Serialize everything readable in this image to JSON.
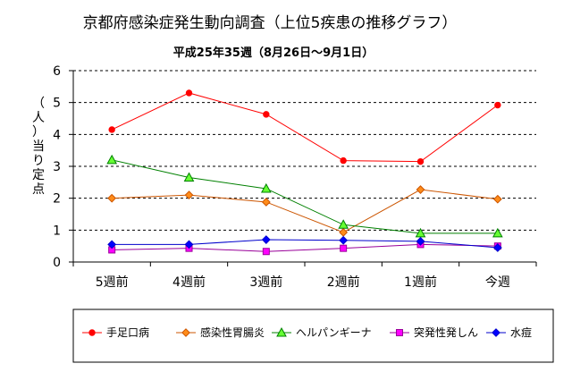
{
  "chart_data": {
    "type": "line",
    "title": "京都府感染症発生動向調査（上位5疾患の推移グラフ）",
    "subtitle": "平成25年35週（8月26日～9月1日）",
    "ylabel": "（人）当り定点",
    "xlabel": "",
    "categories": [
      "5週前",
      "4週前",
      "3週前",
      "2週前",
      "1週前",
      "今週"
    ],
    "ylim": [
      0,
      6
    ],
    "yticks": [
      0,
      1,
      2,
      3,
      4,
      5,
      6
    ],
    "grid": "horizontal dashed",
    "legend_position": "bottom",
    "series": [
      {
        "name": "手足口病",
        "marker": "circle",
        "color": "#ff0000",
        "values": [
          4.15,
          5.3,
          4.63,
          3.18,
          3.15,
          4.92
        ]
      },
      {
        "name": "感染性胃腸炎",
        "marker": "diamond",
        "color": "#cc5500",
        "fill": "#ff8c1a",
        "values": [
          2.0,
          2.1,
          1.88,
          0.93,
          2.27,
          1.97
        ]
      },
      {
        "name": "ヘルパンギーナ",
        "marker": "triangle",
        "color": "#008000",
        "fill": "#66ff33",
        "values": [
          3.2,
          2.65,
          2.3,
          1.17,
          0.9,
          0.9
        ]
      },
      {
        "name": "突発性発しん",
        "marker": "square",
        "color": "#990099",
        "fill": "#ff00ff",
        "values": [
          0.38,
          0.43,
          0.33,
          0.43,
          0.55,
          0.5
        ]
      },
      {
        "name": "水痘",
        "marker": "diamond",
        "color": "#0000cc",
        "fill": "#0000ff",
        "values": [
          0.55,
          0.55,
          0.7,
          0.68,
          0.65,
          0.45
        ]
      }
    ]
  }
}
